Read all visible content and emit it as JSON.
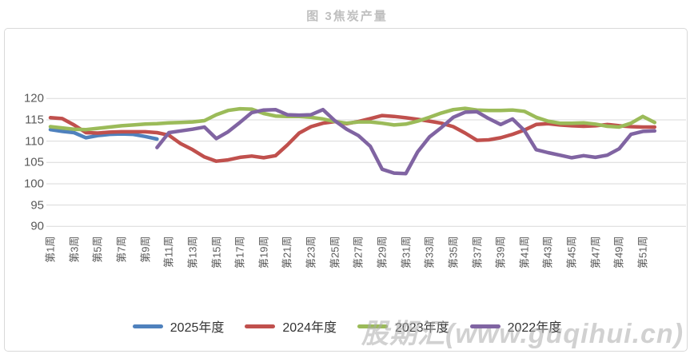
{
  "title": "图 3焦炭产量",
  "watermark": "股期汇(www.guqihui.cn)",
  "axis": {
    "y_label_color": "#595959",
    "grid_color": "#d9d9d9"
  },
  "chart_data": {
    "type": "line",
    "title": "图 3焦炭产量",
    "xlabel": "",
    "ylabel": "",
    "ylim": [
      90,
      120
    ],
    "y_ticks": [
      90,
      95,
      100,
      105,
      110,
      115,
      120
    ],
    "grid": true,
    "legend_position": "bottom",
    "x_tick_step": 2,
    "x_categories": [
      "第1周",
      "第2周",
      "第3周",
      "第4周",
      "第5周",
      "第6周",
      "第7周",
      "第8周",
      "第9周",
      "第10周",
      "第11周",
      "第12周",
      "第13周",
      "第14周",
      "第15周",
      "第16周",
      "第17周",
      "第18周",
      "第19周",
      "第20周",
      "第21周",
      "第22周",
      "第23周",
      "第24周",
      "第25周",
      "第26周",
      "第27周",
      "第28周",
      "第29周",
      "第30周",
      "第31周",
      "第32周",
      "第33周",
      "第34周",
      "第35周",
      "第36周",
      "第37周",
      "第38周",
      "第39周",
      "第40周",
      "第41周",
      "第42周",
      "第43周",
      "第44周",
      "第45周",
      "第46周",
      "第47周",
      "第48周",
      "第49周",
      "第50周",
      "第51周",
      "第52周"
    ],
    "series": [
      {
        "name": "2025年度",
        "color": "#4F81BD",
        "values": [
          112.7,
          112.3,
          112.0,
          110.8,
          111.3,
          111.6,
          111.7,
          111.6,
          111.1,
          110.5,
          null,
          null,
          null,
          null,
          null,
          null,
          null,
          null,
          null,
          null,
          null,
          null,
          null,
          null,
          null,
          null,
          null,
          null,
          null,
          null,
          null,
          null,
          null,
          null,
          null,
          null,
          null,
          null,
          null,
          null,
          null,
          null,
          null,
          null,
          null,
          null,
          null,
          null,
          null,
          null,
          null,
          null
        ]
      },
      {
        "name": "2024年度",
        "color": "#C0504D",
        "values": [
          115.5,
          115.3,
          113.8,
          112.0,
          111.9,
          112.1,
          112.2,
          112.2,
          112.2,
          112.0,
          111.4,
          109.4,
          108.0,
          106.3,
          105.3,
          105.6,
          106.2,
          106.5,
          106.1,
          106.6,
          109.1,
          111.9,
          113.4,
          114.2,
          114.6,
          114.1,
          114.6,
          115.3,
          116.0,
          115.8,
          115.5,
          115.1,
          114.7,
          114.2,
          113.4,
          111.9,
          110.2,
          110.3,
          110.8,
          111.6,
          112.6,
          113.9,
          114.1,
          113.8,
          113.6,
          113.5,
          113.6,
          113.9,
          113.6,
          113.4,
          113.3,
          113.3
        ]
      },
      {
        "name": "2023年度",
        "color": "#9BBB59",
        "values": [
          113.4,
          113.1,
          112.8,
          112.7,
          113.0,
          113.3,
          113.6,
          113.8,
          114.0,
          114.1,
          114.3,
          114.4,
          114.5,
          114.8,
          116.2,
          117.2,
          117.6,
          117.5,
          116.5,
          115.9,
          115.8,
          115.8,
          115.6,
          115.2,
          114.6,
          114.2,
          114.5,
          114.5,
          114.2,
          113.8,
          114.0,
          114.7,
          115.6,
          116.6,
          117.4,
          117.7,
          117.3,
          117.2,
          117.2,
          117.3,
          117.0,
          115.6,
          114.7,
          114.2,
          114.2,
          114.3,
          114.0,
          113.5,
          113.3,
          114.2,
          115.8,
          114.4
        ]
      },
      {
        "name": "2022年度",
        "color": "#8064A2",
        "values": [
          null,
          null,
          null,
          null,
          null,
          null,
          null,
          null,
          null,
          108.5,
          112.0,
          112.4,
          112.8,
          113.3,
          110.6,
          112.2,
          114.4,
          116.7,
          117.3,
          117.4,
          116.2,
          116.1,
          116.2,
          117.4,
          114.8,
          112.8,
          111.3,
          108.8,
          103.4,
          102.5,
          102.4,
          107.5,
          111.0,
          113.2,
          115.6,
          116.8,
          116.9,
          115.3,
          113.9,
          115.2,
          112.5,
          108.0,
          107.3,
          106.7,
          106.1,
          106.6,
          106.2,
          106.7,
          108.2,
          111.6,
          112.3,
          112.4
        ]
      }
    ]
  }
}
